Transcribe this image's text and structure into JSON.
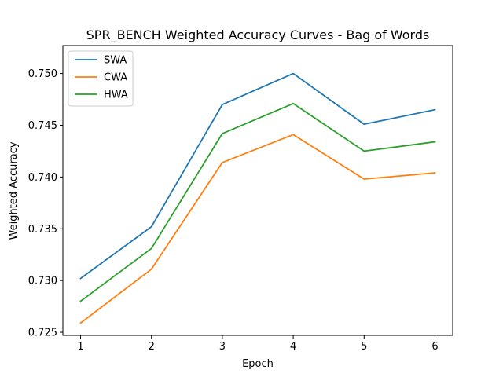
{
  "chart_data": {
    "type": "line",
    "title": "SPR_BENCH Weighted Accuracy Curves - Bag of Words",
    "xlabel": "Epoch",
    "ylabel": "Weighted Accuracy",
    "x": [
      1,
      2,
      3,
      4,
      5,
      6
    ],
    "xlim": [
      0.75,
      6.25
    ],
    "ylim": [
      0.7247,
      0.7527
    ],
    "xticks": [
      "1",
      "2",
      "3",
      "4",
      "5",
      "6"
    ],
    "yticks": [
      0.725,
      0.73,
      0.735,
      0.74,
      0.745,
      0.75
    ],
    "ytick_labels": [
      "0.725",
      "0.730",
      "0.735",
      "0.740",
      "0.745",
      "0.750"
    ],
    "grid": false,
    "legend": "top-left",
    "series": [
      {
        "name": "SWA",
        "color": "#1f77b4",
        "values": [
          0.7302,
          0.7352,
          0.747,
          0.75,
          0.7451,
          0.7465
        ]
      },
      {
        "name": "CWA",
        "color": "#ff7f0e",
        "values": [
          0.7259,
          0.7311,
          0.7414,
          0.7441,
          0.7398,
          0.7404
        ]
      },
      {
        "name": "HWA",
        "color": "#2ca02c",
        "values": [
          0.728,
          0.7331,
          0.7442,
          0.7471,
          0.7425,
          0.7434
        ]
      }
    ]
  }
}
